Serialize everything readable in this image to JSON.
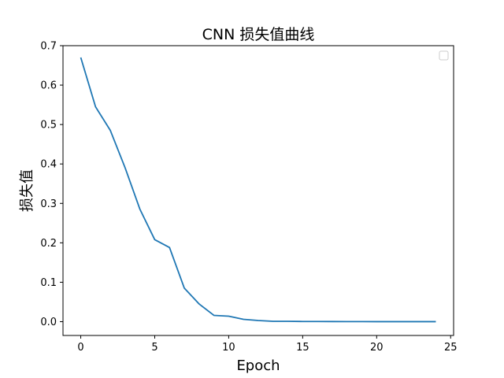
{
  "chart_data": {
    "type": "line",
    "title": "CNN 损失值曲线",
    "xlabel": "Epoch",
    "ylabel": "损失值",
    "xlim": [
      -1.2,
      25.2
    ],
    "ylim": [
      -0.035,
      0.7
    ],
    "xticks": [
      0,
      5,
      10,
      15,
      20,
      25
    ],
    "yticks": [
      0.0,
      0.1,
      0.2,
      0.3,
      0.4,
      0.5,
      0.6,
      0.7
    ],
    "xtick_labels": [
      "0",
      "5",
      "10",
      "15",
      "20",
      "25"
    ],
    "ytick_labels": [
      "0.0",
      "0.1",
      "0.2",
      "0.3",
      "0.4",
      "0.5",
      "0.6",
      "0.7"
    ],
    "grid": false,
    "legend": "upper right (empty)",
    "series": [
      {
        "color": "#1f77b4",
        "x": [
          0,
          1,
          2,
          3,
          4,
          5,
          6,
          7,
          8,
          9,
          10,
          11,
          12,
          13,
          14,
          15,
          16,
          17,
          18,
          19,
          20,
          21,
          22,
          23,
          24
        ],
        "y": [
          0.67,
          0.545,
          0.485,
          0.39,
          0.285,
          0.208,
          0.188,
          0.085,
          0.045,
          0.016,
          0.014,
          0.006,
          0.003,
          0.001,
          0.001,
          0.0005,
          0.0004,
          0.0003,
          0.0002,
          0.0002,
          0.0001,
          0.0001,
          0.0001,
          0.0001,
          0.0001
        ]
      }
    ]
  }
}
